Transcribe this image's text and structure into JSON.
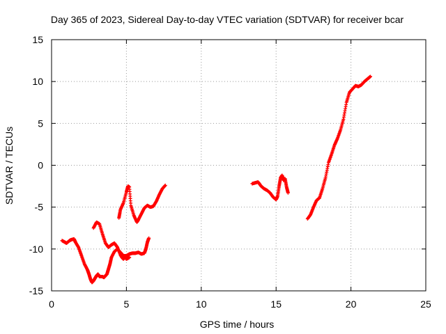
{
  "chart_data": {
    "type": "scatter",
    "title": "Day 365 of 2023, Sidereal Day-to-day VTEC variation (SDTVAR) for receiver bcar",
    "xlabel": "GPS time / hours",
    "ylabel": "SDTVAR / TECUs",
    "xlim": [
      0,
      25
    ],
    "ylim": [
      -15,
      15
    ],
    "xticks": [
      0,
      5,
      10,
      15,
      20,
      25
    ],
    "yticks": [
      -15,
      -10,
      -5,
      0,
      5,
      10,
      15
    ],
    "xtick_labels": [
      "0",
      "5",
      "10",
      "15",
      "20",
      "25"
    ],
    "ytick_labels": [
      "-15",
      "-10",
      "-5",
      "0",
      "5",
      "10",
      "15"
    ],
    "grid": true,
    "legend": "none",
    "marker": "plus",
    "color": "#ff0000",
    "series": [
      {
        "x": [
          0.7,
          0.9,
          1.0,
          1.2,
          1.3,
          1.5,
          1.6,
          1.8,
          2.0,
          2.2,
          2.4,
          2.5,
          2.6,
          2.7,
          2.8,
          2.9,
          3.0,
          3.1,
          3.2,
          3.4,
          3.5,
          3.6,
          3.7,
          3.8,
          3.9,
          4.0,
          4.2,
          4.4,
          4.6,
          4.8,
          5.0,
          5.2,
          5.4,
          5.6,
          5.8,
          6.0,
          6.2,
          6.3,
          6.4,
          6.5
        ],
        "y": [
          -9.0,
          -9.2,
          -9.3,
          -9.0,
          -8.9,
          -8.8,
          -9.2,
          -9.8,
          -10.8,
          -11.8,
          -12.5,
          -13.0,
          -13.6,
          -14.0,
          -13.8,
          -13.5,
          -13.2,
          -13.0,
          -13.3,
          -13.3,
          -13.4,
          -13.2,
          -13.0,
          -12.4,
          -11.8,
          -11.0,
          -10.3,
          -10.0,
          -10.4,
          -10.8,
          -10.8,
          -10.6,
          -10.5,
          -10.5,
          -10.4,
          -10.6,
          -10.5,
          -10.0,
          -9.2,
          -8.7
        ]
      },
      {
        "x": [
          2.8,
          3.0,
          3.2,
          3.4,
          3.6,
          3.8,
          4.0,
          4.2,
          4.4,
          4.6,
          4.7,
          4.8,
          4.9,
          5.0,
          5.1,
          5.2
        ],
        "y": [
          -7.5,
          -6.8,
          -7.0,
          -8.2,
          -9.3,
          -9.8,
          -9.5,
          -9.3,
          -9.8,
          -10.7,
          -11.0,
          -11.2,
          -11.0,
          -11.2,
          -11.1,
          -11.0
        ]
      },
      {
        "x": [
          4.5,
          4.6,
          4.8,
          5.0,
          5.1,
          5.2,
          5.3,
          5.5,
          5.7,
          5.8,
          6.0,
          6.2,
          6.4,
          6.6,
          6.8,
          7.0,
          7.2,
          7.4,
          7.6
        ],
        "y": [
          -6.3,
          -5.3,
          -4.5,
          -3.2,
          -2.5,
          -2.6,
          -4.8,
          -6.0,
          -6.8,
          -6.5,
          -5.8,
          -5.1,
          -4.8,
          -5.0,
          -4.9,
          -4.3,
          -3.5,
          -2.8,
          -2.4
        ]
      },
      {
        "x": [
          13.4,
          13.6,
          13.8,
          14.0,
          14.2,
          14.4,
          14.6,
          14.8,
          15.0,
          15.1,
          15.2,
          15.3,
          15.4,
          15.5,
          15.6,
          15.7,
          15.8
        ],
        "y": [
          -2.2,
          -2.1,
          -2.0,
          -2.5,
          -2.8,
          -3.0,
          -3.3,
          -3.8,
          -4.1,
          -3.7,
          -2.5,
          -1.5,
          -1.2,
          -1.8,
          -1.6,
          -2.6,
          -3.3
        ]
      },
      {
        "x": [
          17.1,
          17.3,
          17.5,
          17.7,
          17.9,
          18.1,
          18.3,
          18.5,
          18.7,
          18.9,
          19.1,
          19.3,
          19.5,
          19.7,
          19.9,
          20.1,
          20.3,
          20.5,
          20.7,
          20.9,
          21.1,
          21.3
        ],
        "y": [
          -6.4,
          -5.9,
          -5.0,
          -4.2,
          -3.9,
          -2.8,
          -1.5,
          0.3,
          1.3,
          2.4,
          3.2,
          4.2,
          5.5,
          7.5,
          8.7,
          9.1,
          9.5,
          9.4,
          9.6,
          10.0,
          10.3,
          10.6
        ]
      }
    ]
  }
}
